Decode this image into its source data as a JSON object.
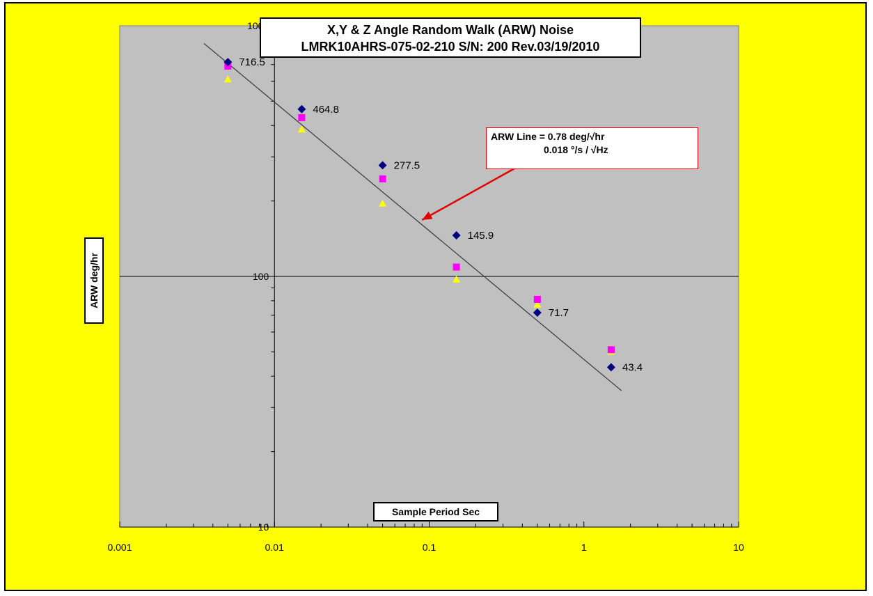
{
  "chart_data": {
    "type": "scatter",
    "title": "X,Y & Z Angle Random Walk (ARW) Noise",
    "subtitle": "LMRK10AHRS-075-02-210  S/N: 200 Rev.03/19/2010",
    "xlabel": "Sample Period Sec",
    "ylabel": "ARW deg/hr",
    "xscale": "log",
    "yscale": "log",
    "xlim": [
      0.001,
      10
    ],
    "ylim": [
      10,
      1000
    ],
    "x_tick_labels": [
      "0.001",
      "0.01",
      "0.1",
      "1",
      "10"
    ],
    "y_tick_labels": [
      "10",
      "100",
      "1000"
    ],
    "grid": false,
    "series": [
      {
        "marker": "diamond",
        "color": "#000080",
        "x": [
          0.005,
          0.015,
          0.05,
          0.15,
          0.5,
          1.5
        ],
        "y": [
          716.5,
          464.8,
          277.5,
          145.9,
          71.7,
          43.4
        ],
        "data_labels": [
          "716.5",
          "464.8",
          "277.5",
          "145.9",
          "71.7",
          "43.4"
        ]
      },
      {
        "marker": "square",
        "color": "#ff00ff",
        "x": [
          0.005,
          0.015,
          0.05,
          0.15,
          0.5,
          1.5
        ],
        "y": [
          690,
          430,
          245,
          109,
          81,
          51
        ]
      },
      {
        "marker": "triangle",
        "color": "#ffff00",
        "x": [
          0.005,
          0.015,
          0.05,
          0.15,
          0.5,
          1.5
        ],
        "y": [
          610,
          385,
          195,
          97,
          77,
          50
        ]
      }
    ],
    "trend_line": {
      "x": [
        0.0035,
        1.75
      ],
      "y": [
        850,
        35
      ]
    },
    "annotation": {
      "line1": "ARW Line = 0.78 deg/√hr",
      "line2": "0.018 °/s / √Hz",
      "arrow_to": {
        "x": 0.09,
        "y": 168
      }
    },
    "colors": {
      "background": "#ffff00",
      "plot_area": "#c0c0c0",
      "arrow": "#e00000"
    }
  }
}
